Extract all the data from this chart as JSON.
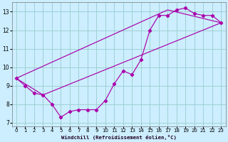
{
  "xlabel": "Windchill (Refroidissement éolien,°C)",
  "bg_color": "#cceeff",
  "line_color": "#aa00aa",
  "xlim": [
    -0.5,
    23.5
  ],
  "ylim": [
    6.8,
    13.5
  ],
  "xticks": [
    0,
    1,
    2,
    3,
    4,
    5,
    6,
    7,
    8,
    9,
    10,
    11,
    12,
    13,
    14,
    15,
    16,
    17,
    18,
    19,
    20,
    21,
    22,
    23
  ],
  "yticks": [
    7,
    8,
    9,
    10,
    11,
    12,
    13
  ],
  "grid_color": "#99cccc",
  "line1_x": [
    0,
    1,
    2,
    3,
    4,
    5,
    6,
    7,
    8,
    9,
    10,
    11,
    12,
    13,
    14,
    15,
    16,
    17,
    18,
    19,
    20,
    21,
    22,
    23
  ],
  "line1_y": [
    9.4,
    9.0,
    8.6,
    8.5,
    8.0,
    7.3,
    7.6,
    7.7,
    7.7,
    7.7,
    8.2,
    9.1,
    9.8,
    9.6,
    10.4,
    12.0,
    12.8,
    12.8,
    13.1,
    13.2,
    12.9,
    12.8,
    12.8,
    12.4
  ],
  "line2_x": [
    0,
    17,
    23
  ],
  "line2_y": [
    9.4,
    13.1,
    12.4
  ],
  "line3_x": [
    0,
    3,
    23
  ],
  "line3_y": [
    9.4,
    8.5,
    12.4
  ]
}
